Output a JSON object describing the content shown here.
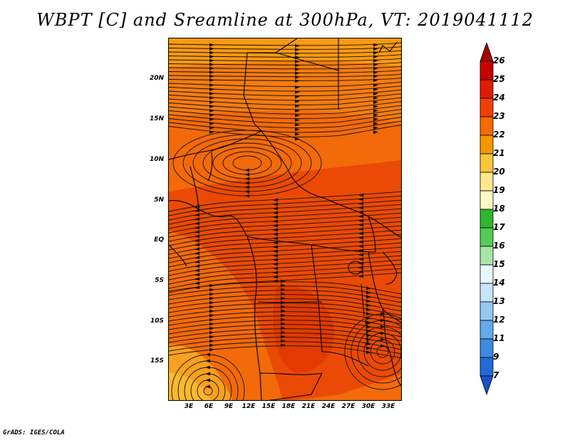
{
  "title": "WBPT [C] and Sreamline at 300hPa, VT: 2019041112",
  "credit": "GrADS: IGES/COLA",
  "map": {
    "variable": "wet-bulb potential temperature",
    "units": "C",
    "level": "300hPa",
    "lat_range": [
      -20,
      25
    ],
    "lon_range": [
      0,
      35
    ],
    "lat_labels": [
      "20N",
      "15N",
      "10N",
      "5N",
      "EQ",
      "5S",
      "10S",
      "15S"
    ],
    "lon_labels": [
      "3E",
      "6E",
      "9E",
      "12E",
      "15E",
      "18E",
      "21E",
      "24E",
      "27E",
      "30E",
      "33E"
    ]
  },
  "colorbar": {
    "levels": [
      "26",
      "25",
      "24",
      "23",
      "22",
      "21",
      "20",
      "19",
      "18",
      "17",
      "16",
      "15",
      "14",
      "13",
      "12",
      "11",
      "9",
      "7"
    ],
    "colors": [
      "#a50000",
      "#c80000",
      "#e11b00",
      "#f04000",
      "#f66a00",
      "#f89600",
      "#fac63a",
      "#fde98a",
      "#fff9c4",
      "#2eb82e",
      "#55cc55",
      "#a8e6a8",
      "#e8f8ff",
      "#c8e4fb",
      "#96c8f5",
      "#64aaee",
      "#3a8be4",
      "#1f6bd6",
      "#1552c4"
    ]
  }
}
